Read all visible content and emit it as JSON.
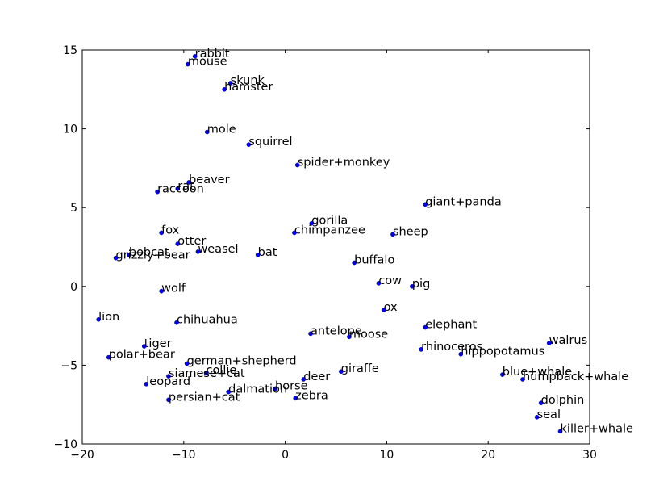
{
  "chart_data": {
    "type": "scatter",
    "title": "",
    "xlabel": "",
    "ylabel": "",
    "xlim": [
      -20,
      30
    ],
    "ylim": [
      -10,
      15
    ],
    "xticks": [
      -20,
      -10,
      0,
      10,
      20,
      30
    ],
    "yticks": [
      -10,
      -5,
      0,
      5,
      10,
      15
    ],
    "tick_labels_x": [
      "−20",
      "−10",
      "0",
      "10",
      "20",
      "30"
    ],
    "tick_labels_y": [
      "−10",
      "−5",
      "0",
      "5",
      "10",
      "15"
    ],
    "grid": false,
    "marker_color": "#0000ff",
    "points": [
      {
        "label": "rabbit",
        "x": -8.9,
        "y": 14.6
      },
      {
        "label": "mouse",
        "x": -9.6,
        "y": 14.1
      },
      {
        "label": "skunk",
        "x": -5.4,
        "y": 12.9
      },
      {
        "label": "hamster",
        "x": -6.0,
        "y": 12.5
      },
      {
        "label": "mole",
        "x": -7.7,
        "y": 9.8
      },
      {
        "label": "squirrel",
        "x": -3.6,
        "y": 9.0
      },
      {
        "label": "spider+monkey",
        "x": 1.2,
        "y": 7.7
      },
      {
        "label": "beaver",
        "x": -9.5,
        "y": 6.6
      },
      {
        "label": "rat",
        "x": -10.6,
        "y": 6.2
      },
      {
        "label": "raccoon",
        "x": -12.6,
        "y": 6.0
      },
      {
        "label": "giant+panda",
        "x": 13.8,
        "y": 5.2
      },
      {
        "label": "gorilla",
        "x": 2.6,
        "y": 4.0
      },
      {
        "label": "chimpanzee",
        "x": 0.9,
        "y": 3.4
      },
      {
        "label": "sheep",
        "x": 10.6,
        "y": 3.3
      },
      {
        "label": "fox",
        "x": -12.2,
        "y": 3.4
      },
      {
        "label": "otter",
        "x": -10.6,
        "y": 2.7
      },
      {
        "label": "weasel",
        "x": -8.6,
        "y": 2.2
      },
      {
        "label": "bat",
        "x": -2.7,
        "y": 2.0
      },
      {
        "label": "bobcat",
        "x": -15.4,
        "y": 2.0
      },
      {
        "label": "grizzly+bear",
        "x": -16.7,
        "y": 1.8
      },
      {
        "label": "buffalo",
        "x": 6.8,
        "y": 1.5
      },
      {
        "label": "cow",
        "x": 9.2,
        "y": 0.2
      },
      {
        "label": "pig",
        "x": 12.5,
        "y": 0.0
      },
      {
        "label": "wolf",
        "x": -12.2,
        "y": -0.3
      },
      {
        "label": "ox",
        "x": 9.7,
        "y": -1.5
      },
      {
        "label": "lion",
        "x": -18.4,
        "y": -2.1
      },
      {
        "label": "chihuahua",
        "x": -10.7,
        "y": -2.3
      },
      {
        "label": "elephant",
        "x": 13.8,
        "y": -2.6
      },
      {
        "label": "antelope",
        "x": 2.5,
        "y": -3.0
      },
      {
        "label": "moose",
        "x": 6.3,
        "y": -3.2
      },
      {
        "label": "walrus",
        "x": 26.0,
        "y": -3.6
      },
      {
        "label": "tiger",
        "x": -13.9,
        "y": -3.8
      },
      {
        "label": "rhinoceros",
        "x": 13.4,
        "y": -4.0
      },
      {
        "label": "hippopotamus",
        "x": 17.3,
        "y": -4.3
      },
      {
        "label": "polar+bear",
        "x": -17.4,
        "y": -4.5
      },
      {
        "label": "german+shepherd",
        "x": -9.7,
        "y": -4.9
      },
      {
        "label": "giraffe",
        "x": 5.5,
        "y": -5.4
      },
      {
        "label": "collie",
        "x": -7.8,
        "y": -5.5
      },
      {
        "label": "blue+whale",
        "x": 21.4,
        "y": -5.6
      },
      {
        "label": "siamese+cat",
        "x": -11.5,
        "y": -5.7
      },
      {
        "label": "humpback+whale",
        "x": 23.4,
        "y": -5.9
      },
      {
        "label": "deer",
        "x": 1.8,
        "y": -5.9
      },
      {
        "label": "leopard",
        "x": -13.7,
        "y": -6.2
      },
      {
        "label": "horse",
        "x": -1.0,
        "y": -6.5
      },
      {
        "label": "dalmation",
        "x": -5.6,
        "y": -6.7
      },
      {
        "label": "zebra",
        "x": 1.0,
        "y": -7.1
      },
      {
        "label": "persian+cat",
        "x": -11.5,
        "y": -7.2
      },
      {
        "label": "dolphin",
        "x": 25.2,
        "y": -7.4
      },
      {
        "label": "seal",
        "x": 24.8,
        "y": -8.3
      },
      {
        "label": "killer+whale",
        "x": 27.1,
        "y": -9.2
      }
    ]
  }
}
